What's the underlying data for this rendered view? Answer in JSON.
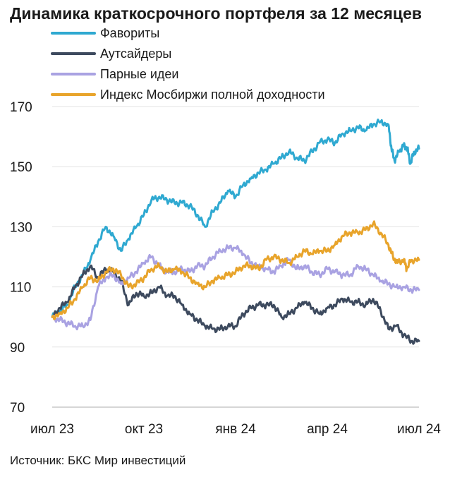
{
  "chart_data": {
    "type": "line",
    "title": "Динамика краткосрочного портфеля за 12 месяцев",
    "source": "Источник: БКС Мир инвестиций",
    "xlabel": "",
    "ylabel": "",
    "ylim": [
      70,
      170
    ],
    "yticks": [
      70,
      90,
      110,
      130,
      150,
      170
    ],
    "xlim": [
      0,
      12
    ],
    "xticks": [
      {
        "x": 0,
        "label": "июл 23"
      },
      {
        "x": 3,
        "label": "окт 23"
      },
      {
        "x": 6,
        "label": "янв 24"
      },
      {
        "x": 9,
        "label": "апр 24"
      },
      {
        "x": 12,
        "label": "июл 24"
      }
    ],
    "grid": "horizontal",
    "legend_position": "top-left",
    "series": [
      {
        "name": "Фавориты",
        "color": "#2fa9d1",
        "points": [
          [
            0,
            100
          ],
          [
            0.25,
            102
          ],
          [
            0.5,
            104
          ],
          [
            0.75,
            110
          ],
          [
            1.0,
            114
          ],
          [
            1.25,
            119
          ],
          [
            1.5,
            125
          ],
          [
            1.75,
            130
          ],
          [
            2.0,
            127
          ],
          [
            2.25,
            122
          ],
          [
            2.5,
            126
          ],
          [
            2.75,
            130
          ],
          [
            3.0,
            134
          ],
          [
            3.25,
            139
          ],
          [
            3.5,
            140
          ],
          [
            3.75,
            139
          ],
          [
            4.0,
            138
          ],
          [
            4.25,
            138
          ],
          [
            4.5,
            137
          ],
          [
            4.75,
            134
          ],
          [
            5.0,
            130
          ],
          [
            5.25,
            135
          ],
          [
            5.5,
            138
          ],
          [
            5.75,
            142
          ],
          [
            6.0,
            140
          ],
          [
            6.25,
            144
          ],
          [
            6.5,
            146
          ],
          [
            6.75,
            148
          ],
          [
            7.0,
            149
          ],
          [
            7.25,
            151
          ],
          [
            7.5,
            153
          ],
          [
            7.75,
            155
          ],
          [
            8.0,
            153
          ],
          [
            8.25,
            152
          ],
          [
            8.5,
            155
          ],
          [
            8.75,
            158
          ],
          [
            9.0,
            159
          ],
          [
            9.25,
            158
          ],
          [
            9.5,
            161
          ],
          [
            9.75,
            162
          ],
          [
            10.0,
            163
          ],
          [
            10.25,
            162
          ],
          [
            10.5,
            164
          ],
          [
            10.75,
            165
          ],
          [
            11.0,
            164
          ],
          [
            11.1,
            156
          ],
          [
            11.2,
            152
          ],
          [
            11.35,
            155
          ],
          [
            11.5,
            157
          ],
          [
            11.62,
            156
          ],
          [
            11.72,
            151
          ],
          [
            11.85,
            155
          ],
          [
            12.0,
            156
          ]
        ]
      },
      {
        "name": "Аутсайдеры",
        "color": "#3d4a5e",
        "points": [
          [
            0,
            100
          ],
          [
            0.25,
            103
          ],
          [
            0.5,
            105
          ],
          [
            0.75,
            110
          ],
          [
            1.0,
            114
          ],
          [
            1.25,
            117
          ],
          [
            1.5,
            113
          ],
          [
            1.75,
            116
          ],
          [
            2.0,
            115
          ],
          [
            2.25,
            112
          ],
          [
            2.5,
            104
          ],
          [
            2.75,
            108
          ],
          [
            3.0,
            107
          ],
          [
            3.25,
            108
          ],
          [
            3.5,
            110
          ],
          [
            3.75,
            107
          ],
          [
            4.0,
            107
          ],
          [
            4.25,
            104
          ],
          [
            4.5,
            101
          ],
          [
            4.75,
            99
          ],
          [
            5.0,
            97
          ],
          [
            5.25,
            96
          ],
          [
            5.5,
            96
          ],
          [
            5.75,
            97
          ],
          [
            6.0,
            97
          ],
          [
            6.25,
            101
          ],
          [
            6.5,
            103
          ],
          [
            6.75,
            104
          ],
          [
            7.0,
            104
          ],
          [
            7.25,
            104
          ],
          [
            7.5,
            100
          ],
          [
            7.75,
            101
          ],
          [
            8.0,
            103
          ],
          [
            8.25,
            105
          ],
          [
            8.5,
            103
          ],
          [
            8.75,
            101
          ],
          [
            9.0,
            103
          ],
          [
            9.25,
            104
          ],
          [
            9.5,
            106
          ],
          [
            9.75,
            105
          ],
          [
            10.0,
            105
          ],
          [
            10.25,
            104
          ],
          [
            10.5,
            106
          ],
          [
            10.75,
            102
          ],
          [
            11.0,
            96
          ],
          [
            11.25,
            97
          ],
          [
            11.5,
            94
          ],
          [
            11.75,
            92
          ],
          [
            12.0,
            92
          ]
        ]
      },
      {
        "name": "Парные идеи",
        "color": "#a9a2e2",
        "points": [
          [
            0,
            100
          ],
          [
            0.25,
            99
          ],
          [
            0.5,
            98
          ],
          [
            0.75,
            97
          ],
          [
            1.0,
            97
          ],
          [
            1.25,
            99
          ],
          [
            1.5,
            110
          ],
          [
            1.75,
            113
          ],
          [
            2.0,
            114
          ],
          [
            2.25,
            111
          ],
          [
            2.5,
            113
          ],
          [
            2.75,
            115
          ],
          [
            3.0,
            118
          ],
          [
            3.25,
            120
          ],
          [
            3.5,
            117
          ],
          [
            3.75,
            115
          ],
          [
            4.0,
            115
          ],
          [
            4.25,
            116
          ],
          [
            4.5,
            115
          ],
          [
            4.75,
            117
          ],
          [
            5.0,
            117
          ],
          [
            5.25,
            120
          ],
          [
            5.5,
            122
          ],
          [
            5.75,
            123
          ],
          [
            6.0,
            123
          ],
          [
            6.25,
            121
          ],
          [
            6.5,
            118
          ],
          [
            6.75,
            117
          ],
          [
            7.0,
            116
          ],
          [
            7.25,
            115
          ],
          [
            7.5,
            117
          ],
          [
            7.75,
            119
          ],
          [
            8.0,
            116
          ],
          [
            8.25,
            117
          ],
          [
            8.5,
            115
          ],
          [
            8.75,
            114
          ],
          [
            9.0,
            116
          ],
          [
            9.25,
            115
          ],
          [
            9.5,
            114
          ],
          [
            9.75,
            114
          ],
          [
            10.0,
            117
          ],
          [
            10.25,
            116
          ],
          [
            10.5,
            114
          ],
          [
            10.75,
            112
          ],
          [
            11.0,
            111
          ],
          [
            11.25,
            110
          ],
          [
            11.5,
            110
          ],
          [
            11.75,
            109
          ],
          [
            12.0,
            109
          ]
        ]
      },
      {
        "name": "Индекс Мосбиржи полной доходности",
        "color": "#e8a42b",
        "points": [
          [
            0,
            100
          ],
          [
            0.25,
            101
          ],
          [
            0.5,
            103
          ],
          [
            0.75,
            106
          ],
          [
            1.0,
            110
          ],
          [
            1.25,
            113
          ],
          [
            1.5,
            112
          ],
          [
            1.75,
            115
          ],
          [
            2.0,
            116
          ],
          [
            2.25,
            114
          ],
          [
            2.5,
            110
          ],
          [
            2.75,
            111
          ],
          [
            3.0,
            113
          ],
          [
            3.25,
            116
          ],
          [
            3.5,
            117
          ],
          [
            3.75,
            115
          ],
          [
            4.0,
            116
          ],
          [
            4.25,
            115
          ],
          [
            4.5,
            113
          ],
          [
            4.75,
            111
          ],
          [
            5.0,
            110
          ],
          [
            5.25,
            112
          ],
          [
            5.5,
            113
          ],
          [
            5.75,
            114
          ],
          [
            6.0,
            115
          ],
          [
            6.25,
            117
          ],
          [
            6.5,
            117
          ],
          [
            6.75,
            116
          ],
          [
            7.0,
            119
          ],
          [
            7.25,
            120
          ],
          [
            7.5,
            119
          ],
          [
            7.75,
            118
          ],
          [
            8.0,
            120
          ],
          [
            8.25,
            122
          ],
          [
            8.5,
            121
          ],
          [
            8.75,
            122
          ],
          [
            9.0,
            122
          ],
          [
            9.25,
            124
          ],
          [
            9.5,
            127
          ],
          [
            9.75,
            128
          ],
          [
            10.0,
            128
          ],
          [
            10.25,
            129
          ],
          [
            10.5,
            131
          ],
          [
            10.75,
            128
          ],
          [
            11.0,
            124
          ],
          [
            11.15,
            120
          ],
          [
            11.3,
            118
          ],
          [
            11.5,
            119
          ],
          [
            11.6,
            116
          ],
          [
            11.75,
            119
          ],
          [
            12.0,
            119
          ]
        ]
      }
    ]
  }
}
